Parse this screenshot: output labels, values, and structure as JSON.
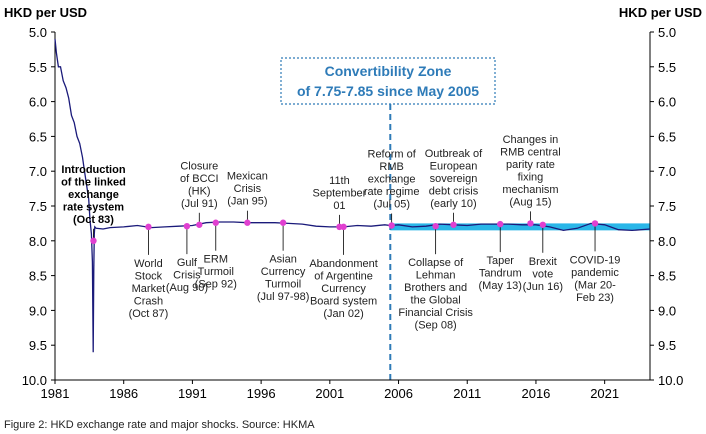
{
  "chart_data": {
    "type": "line",
    "ylabel_left": "HKD per USD",
    "ylabel_right": "HKD per USD",
    "ylim": [
      10.0,
      5.0
    ],
    "yticks": [
      "5.0",
      "5.5",
      "6.0",
      "6.5",
      "7.0",
      "7.5",
      "8.0",
      "8.5",
      "9.0",
      "9.5",
      "10.0"
    ],
    "xlim": [
      1981,
      2024.3
    ],
    "xticks": [
      "1981",
      "1986",
      "1991",
      "1996",
      "2001",
      "2006",
      "2011",
      "2016",
      "2021"
    ],
    "series": [
      {
        "name": "HKD per USD",
        "color": "#1a1a7a",
        "x": [
          1981.0,
          1981.1,
          1981.25,
          1981.4,
          1981.6,
          1981.8,
          1982.0,
          1982.2,
          1982.4,
          1982.6,
          1982.8,
          1983.0,
          1983.15,
          1983.3,
          1983.45,
          1983.55,
          1983.65,
          1983.72,
          1983.78,
          1983.82,
          1983.86,
          1983.9,
          1984.0,
          1984.5,
          1985,
          1986,
          1987,
          1988,
          1989,
          1990,
          1991,
          1992,
          1993,
          1994,
          1995,
          1996,
          1997,
          1998,
          1999,
          2000,
          2001,
          2002,
          2003,
          2004,
          2005,
          2005.4,
          2006,
          2007,
          2008,
          2009,
          2010,
          2011,
          2012,
          2013,
          2014,
          2015,
          2016,
          2017,
          2018,
          2019,
          2020,
          2021,
          2022,
          2023,
          2024.3
        ],
        "y": [
          5.1,
          5.3,
          5.5,
          5.5,
          5.7,
          5.8,
          5.95,
          6.2,
          6.3,
          6.5,
          6.6,
          6.8,
          7.0,
          7.2,
          7.4,
          7.7,
          7.9,
          8.3,
          9.6,
          8.4,
          7.9,
          7.8,
          7.82,
          7.83,
          7.81,
          7.8,
          7.78,
          7.81,
          7.8,
          7.79,
          7.78,
          7.74,
          7.73,
          7.73,
          7.74,
          7.74,
          7.74,
          7.75,
          7.76,
          7.79,
          7.8,
          7.8,
          7.78,
          7.79,
          7.77,
          7.78,
          7.77,
          7.8,
          7.79,
          7.76,
          7.77,
          7.78,
          7.76,
          7.76,
          7.76,
          7.77,
          7.77,
          7.8,
          7.85,
          7.82,
          7.75,
          7.77,
          7.84,
          7.85,
          7.83
        ]
      }
    ],
    "convertibility_zone": {
      "lower": 7.75,
      "upper": 7.85,
      "start": 2005.4,
      "color": "#29b6e8",
      "label_line1": "Convertibility Zone",
      "label_line2": "of 7.75-7.85 since May 2005"
    },
    "events": [
      {
        "x": 1983.8,
        "y": 8.0,
        "lines": [
          "Introduction",
          "of the linked",
          "exchange",
          "rate system",
          "(Oct 83)"
        ],
        "pos": "above",
        "bold": true
      },
      {
        "x": 1987.8,
        "y": 7.8,
        "lines": [
          "World",
          "Stock",
          "Market",
          "Crash",
          "(Oct 87)"
        ],
        "pos": "below"
      },
      {
        "x": 1990.6,
        "y": 7.79,
        "lines": [
          "Gulf",
          "Crisis",
          "(Aug 90)"
        ],
        "pos": "below"
      },
      {
        "x": 1991.5,
        "y": 7.77,
        "lines": [
          "Closure",
          "of BCCI",
          "(HK)",
          "(Jul 91)"
        ],
        "pos": "above"
      },
      {
        "x": 1992.7,
        "y": 7.74,
        "lines": [
          "ERM",
          "Turmoil",
          "(Sep 92)"
        ],
        "pos": "below"
      },
      {
        "x": 1995.0,
        "y": 7.74,
        "lines": [
          "Mexican",
          "Crisis",
          "(Jan 95)"
        ],
        "pos": "above"
      },
      {
        "x": 1997.6,
        "y": 7.74,
        "lines": [
          "Asian",
          "Currency",
          "Turmoil",
          "(Jul 97-98)"
        ],
        "pos": "below"
      },
      {
        "x": 2001.7,
        "y": 7.8,
        "lines": [
          "11th",
          "September",
          "01"
        ],
        "pos": "above"
      },
      {
        "x": 2002.0,
        "y": 7.8,
        "lines": [
          "Abandonment",
          "of Argentine",
          "Currency",
          "Board system",
          "(Jan 02)"
        ],
        "pos": "below"
      },
      {
        "x": 2005.5,
        "y": 7.78,
        "lines": [
          "Reform of",
          "RMB",
          "exchange",
          "rate regime",
          "(Jul 05)"
        ],
        "pos": "above"
      },
      {
        "x": 2008.7,
        "y": 7.79,
        "lines": [
          "Collapse of",
          "Lehman",
          "Brothers and",
          "the Global",
          "Financial Crisis",
          "(Sep 08)"
        ],
        "pos": "below"
      },
      {
        "x": 2010.0,
        "y": 7.77,
        "lines": [
          "Outbreak of",
          "European",
          "sovereign",
          "debt crisis",
          "(early 10)"
        ],
        "pos": "above"
      },
      {
        "x": 2013.4,
        "y": 7.76,
        "lines": [
          "Taper",
          "Tandrum",
          "(May 13)"
        ],
        "pos": "below"
      },
      {
        "x": 2015.6,
        "y": 7.75,
        "lines": [
          "Changes in",
          "RMB central",
          "parity rate",
          "fixing",
          "mechanism",
          "(Aug 15)"
        ],
        "pos": "above"
      },
      {
        "x": 2016.5,
        "y": 7.77,
        "lines": [
          "Brexit",
          "vote",
          "(Jun 16)"
        ],
        "pos": "below"
      },
      {
        "x": 2020.3,
        "y": 7.75,
        "lines": [
          "COVID-19",
          "pandemic",
          "(Mar 20-",
          "Feb 23)"
        ],
        "pos": "below"
      }
    ]
  },
  "caption": "Figure 2: HKD exchange rate and major shocks. Source: HKMA"
}
